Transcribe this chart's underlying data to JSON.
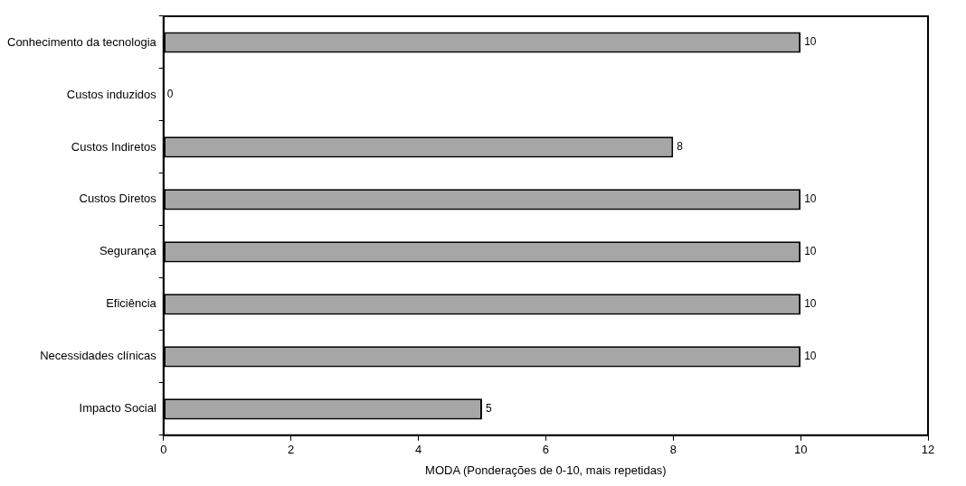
{
  "chart_data": {
    "type": "bar",
    "orientation": "horizontal",
    "xlabel": "MODA (Ponderações de 0-10, mais repetidas)",
    "categories": [
      "Conhecimento da tecnologia",
      "Custos induzidos",
      "Custos Indiretos",
      "Custos Diretos",
      "Segurança",
      "Eficiência",
      "Necessidades clínicas",
      "Impacto Social"
    ],
    "values": [
      10,
      0,
      8,
      10,
      10,
      10,
      10,
      5
    ],
    "color": "#a6a6a6",
    "xlim": [
      0,
      12
    ],
    "xticks": [
      0,
      2,
      4,
      6,
      8,
      10,
      12
    ],
    "data_labels": true,
    "legend": false,
    "grid": false
  }
}
